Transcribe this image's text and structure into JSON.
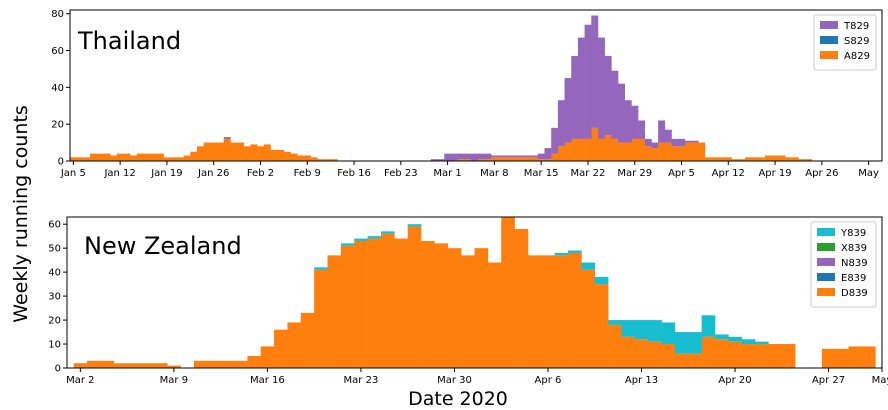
{
  "shared": {
    "ylabel": "Weekly running counts",
    "xlabel": "Date 2020"
  },
  "colors": {
    "T829": "#9467bd",
    "S829": "#1f77b4",
    "A829": "#ff7f0e",
    "Y839": "#17becf",
    "X839": "#2ca02c",
    "N839": "#9467bd",
    "E839": "#1f77b4",
    "D839": "#ff7f0e"
  },
  "chart_data": [
    {
      "type": "area",
      "title": "Thailand",
      "xlabel": "",
      "ylabel": "Weekly running counts",
      "x_unit": "day of 2020",
      "xlim": [
        4.5,
        126
      ],
      "ylim": [
        0,
        82
      ],
      "yticks": [
        0,
        20,
        40,
        60,
        80
      ],
      "xticks": [
        {
          "pos": 5,
          "label": "Jan 5"
        },
        {
          "pos": 12,
          "label": "Jan 12"
        },
        {
          "pos": 19,
          "label": "Jan 19"
        },
        {
          "pos": 26,
          "label": "Jan 26"
        },
        {
          "pos": 33,
          "label": "Feb 2"
        },
        {
          "pos": 40,
          "label": "Feb 9"
        },
        {
          "pos": 47,
          "label": "Feb 16"
        },
        {
          "pos": 54,
          "label": "Feb 23"
        },
        {
          "pos": 61,
          "label": "Mar 1"
        },
        {
          "pos": 68,
          "label": "Mar 8"
        },
        {
          "pos": 75,
          "label": "Mar 15"
        },
        {
          "pos": 82,
          "label": "Mar 22"
        },
        {
          "pos": 89,
          "label": "Mar 29"
        },
        {
          "pos": 96,
          "label": "Apr 5"
        },
        {
          "pos": 103,
          "label": "Apr 12"
        },
        {
          "pos": 110,
          "label": "Apr 19"
        },
        {
          "pos": 117,
          "label": "Apr 26"
        },
        {
          "pos": 124,
          "label": "May"
        }
      ],
      "legend": {
        "placement": "top-right",
        "entries": [
          "T829",
          "S829",
          "A829"
        ]
      },
      "stack_order": [
        "A829",
        "S829",
        "T829"
      ],
      "x": [
        5,
        6,
        7,
        8,
        9,
        10,
        11,
        12,
        13,
        14,
        15,
        16,
        17,
        18,
        19,
        20,
        21,
        22,
        23,
        24,
        25,
        26,
        27,
        28,
        29,
        30,
        31,
        32,
        33,
        34,
        35,
        36,
        37,
        38,
        39,
        40,
        41,
        42,
        43,
        44,
        45,
        46,
        47,
        48,
        49,
        50,
        51,
        52,
        53,
        54,
        55,
        56,
        57,
        58,
        59,
        60,
        61,
        62,
        63,
        64,
        65,
        66,
        67,
        68,
        69,
        70,
        71,
        72,
        73,
        74,
        75,
        76,
        77,
        78,
        79,
        80,
        81,
        82,
        83,
        84,
        85,
        86,
        87,
        88,
        89,
        90,
        91,
        92,
        93,
        94,
        95,
        96,
        97,
        98,
        99,
        100,
        101,
        102,
        103,
        104,
        105,
        106,
        107,
        108,
        109,
        110,
        111,
        112,
        113,
        114,
        115,
        116,
        117,
        118,
        119,
        120,
        121,
        122,
        123,
        124,
        125
      ],
      "series": [
        {
          "name": "A829",
          "values": [
            2,
            2,
            2,
            4,
            4,
            4,
            3,
            4,
            4,
            3,
            4,
            4,
            4,
            4,
            2,
            2,
            2,
            3,
            5,
            8,
            10,
            10,
            10,
            12,
            10,
            10,
            8,
            9,
            8,
            9,
            6,
            6,
            5,
            4,
            3,
            3,
            2,
            1,
            1,
            1,
            0,
            0,
            0,
            0,
            0,
            0,
            0,
            0,
            0,
            0,
            0,
            0,
            0,
            0,
            0,
            0,
            0,
            0,
            1,
            1,
            0,
            1,
            1,
            2,
            2,
            2,
            2,
            2,
            2,
            2,
            1,
            1,
            4,
            8,
            10,
            12,
            12,
            12,
            18,
            12,
            14,
            12,
            10,
            10,
            12,
            12,
            8,
            7,
            10,
            10,
            8,
            8,
            10,
            10,
            10,
            2,
            2,
            2,
            2,
            1,
            1,
            2,
            2,
            2,
            3,
            3,
            3,
            2,
            2,
            1,
            1,
            0,
            0,
            0,
            0,
            0,
            0,
            0,
            0,
            0,
            0
          ]
        },
        {
          "name": "S829",
          "values": [
            0,
            0,
            0,
            0,
            0,
            0,
            0,
            0,
            0,
            0,
            0,
            0,
            0,
            0,
            0,
            0,
            0,
            0,
            0,
            0,
            0,
            0,
            0,
            0,
            0,
            0,
            0,
            0,
            0,
            0,
            0,
            0,
            0,
            0,
            0,
            0,
            0,
            0,
            0,
            0,
            0,
            0,
            0,
            0,
            0,
            0,
            0,
            0,
            0,
            0,
            0,
            0,
            0,
            0,
            0,
            0,
            0,
            0,
            0,
            0,
            0,
            0,
            0,
            0,
            0,
            0,
            0,
            0,
            0,
            0,
            0,
            0,
            0,
            0,
            0,
            0,
            0,
            0,
            0,
            0,
            0,
            0,
            0,
            0,
            0,
            0,
            0,
            0,
            0,
            0,
            0,
            0,
            0,
            0,
            0,
            0,
            0,
            0,
            0,
            0,
            0,
            0,
            0,
            0,
            0,
            0,
            0,
            0,
            0,
            0,
            0,
            0,
            0,
            0,
            0,
            0,
            0,
            0,
            0,
            0,
            0
          ]
        },
        {
          "name": "T829",
          "values": [
            0,
            0,
            0,
            0,
            0,
            0,
            0,
            0,
            0,
            0,
            0,
            0,
            0,
            0,
            0,
            0,
            0,
            0,
            0,
            0,
            0,
            0,
            0,
            1,
            0,
            0,
            0,
            0,
            0,
            0,
            0,
            0,
            0,
            0,
            0,
            0,
            0,
            0,
            0,
            0,
            0,
            0,
            0,
            0,
            0,
            0,
            0,
            0,
            0,
            0,
            0,
            0,
            0,
            0,
            1,
            1,
            4,
            4,
            3,
            3,
            4,
            3,
            3,
            1,
            1,
            1,
            1,
            1,
            1,
            1,
            3,
            6,
            14,
            25,
            35,
            45,
            55,
            62,
            61,
            55,
            43,
            37,
            32,
            23,
            18,
            10,
            4,
            3,
            12,
            7,
            4,
            4,
            1,
            1,
            0,
            0,
            0,
            0,
            0,
            0,
            0,
            0,
            0,
            0,
            0,
            0,
            0,
            0,
            0,
            0,
            0,
            0,
            0,
            0,
            0,
            0,
            0,
            0,
            0,
            0,
            0
          ]
        }
      ]
    },
    {
      "type": "area",
      "title": "New Zealand",
      "xlabel": "Date 2020",
      "ylabel": "Weekly running counts",
      "x_unit": "day of 2020",
      "xlim": [
        61,
        122
      ],
      "ylim": [
        0,
        63
      ],
      "yticks": [
        0,
        10,
        20,
        30,
        40,
        50,
        60
      ],
      "xticks": [
        {
          "pos": 62,
          "label": "Mar 2"
        },
        {
          "pos": 69,
          "label": "Mar 9"
        },
        {
          "pos": 76,
          "label": "Mar 16"
        },
        {
          "pos": 83,
          "label": "Mar 23"
        },
        {
          "pos": 90,
          "label": "Mar 30"
        },
        {
          "pos": 97,
          "label": "Apr 6"
        },
        {
          "pos": 104,
          "label": "Apr 13"
        },
        {
          "pos": 111,
          "label": "Apr 20"
        },
        {
          "pos": 118,
          "label": "Apr 27"
        },
        {
          "pos": 122,
          "label": "May"
        }
      ],
      "legend": {
        "placement": "top-right",
        "entries": [
          "Y839",
          "X839",
          "N839",
          "E839",
          "D839"
        ]
      },
      "stack_order": [
        "D839",
        "E839",
        "N839",
        "X839",
        "Y839"
      ],
      "x": [
        62,
        63,
        64,
        65,
        66,
        67,
        68,
        69,
        70,
        71,
        72,
        73,
        74,
        75,
        76,
        77,
        78,
        79,
        80,
        81,
        82,
        83,
        84,
        85,
        86,
        87,
        88,
        89,
        90,
        91,
        92,
        93,
        94,
        95,
        96,
        97,
        98,
        99,
        100,
        101,
        102,
        103,
        104,
        105,
        106,
        107,
        108,
        109,
        110,
        111,
        112,
        113,
        114,
        115,
        116,
        117,
        118,
        119,
        120,
        121
      ],
      "series": [
        {
          "name": "D839",
          "values": [
            2,
            3,
            3,
            2,
            2,
            2,
            2,
            1,
            0,
            3,
            3,
            3,
            3,
            5,
            9,
            16,
            19,
            23,
            41,
            47,
            51,
            53,
            54,
            56,
            54,
            59,
            53,
            52,
            50,
            47,
            50,
            44,
            63,
            58,
            47,
            47,
            47,
            48,
            41,
            35,
            18,
            13,
            12,
            11,
            10,
            6,
            6,
            13,
            12,
            11,
            10,
            10,
            10,
            10,
            0,
            0,
            8,
            8,
            9,
            9
          ]
        },
        {
          "name": "E839",
          "values": [
            0,
            0,
            0,
            0,
            0,
            0,
            0,
            0,
            0,
            0,
            0,
            0,
            0,
            0,
            0,
            0,
            0,
            0,
            0,
            0,
            0,
            0,
            0,
            0,
            0,
            0,
            0,
            0,
            0,
            0,
            0,
            0,
            0,
            0,
            0,
            0,
            0,
            0,
            0,
            0,
            0,
            0,
            0,
            0,
            0,
            0,
            0,
            0,
            0,
            0,
            0,
            0,
            0,
            0,
            0,
            0,
            0,
            0,
            0,
            0
          ]
        },
        {
          "name": "N839",
          "values": [
            0,
            0,
            0,
            0,
            0,
            0,
            0,
            0,
            0,
            0,
            0,
            0,
            0,
            0,
            0,
            0,
            0,
            0,
            0,
            0,
            0,
            0,
            0,
            0,
            0,
            0,
            0,
            0,
            0,
            0,
            0,
            0,
            0,
            0,
            0,
            0,
            0,
            0,
            0,
            0,
            0,
            0,
            0,
            0,
            0,
            0,
            0,
            0,
            0,
            0,
            0,
            0,
            0,
            0,
            0,
            0,
            0,
            0,
            0,
            0
          ]
        },
        {
          "name": "X839",
          "values": [
            0,
            0,
            0,
            0,
            0,
            0,
            0,
            0,
            0,
            0,
            0,
            0,
            0,
            0,
            0,
            0,
            0,
            0,
            0,
            0,
            0,
            0,
            0,
            0,
            0,
            0,
            0,
            0,
            0,
            0,
            0,
            0,
            0,
            0,
            0,
            0,
            0,
            0,
            0,
            0,
            0,
            0,
            0,
            0,
            0,
            0,
            0,
            0,
            0,
            0,
            0,
            0,
            0,
            0,
            0,
            0,
            0,
            0,
            0,
            0
          ]
        },
        {
          "name": "Y839",
          "values": [
            0,
            0,
            0,
            0,
            0,
            0,
            0,
            0,
            0,
            0,
            0,
            0,
            0,
            0,
            0,
            0,
            0,
            0,
            1,
            0,
            1,
            1,
            1,
            1,
            0,
            1,
            0,
            0,
            0,
            0,
            0,
            0,
            0,
            0,
            0,
            0,
            1,
            1,
            3,
            3,
            2,
            7,
            8,
            9,
            9,
            9,
            9,
            9,
            2,
            2,
            2,
            1,
            0,
            0,
            0,
            0,
            0,
            0,
            0,
            0
          ]
        }
      ]
    }
  ]
}
